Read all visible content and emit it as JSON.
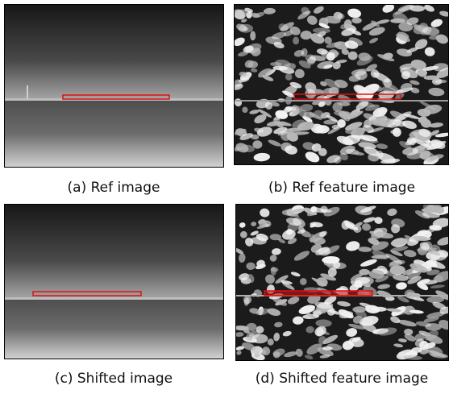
{
  "panels": [
    {
      "caption": "(a) Ref image"
    },
    {
      "caption": "(b) Ref feature image"
    },
    {
      "caption": "(c) Shifted image"
    },
    {
      "caption": "(d) Shifted feature image"
    }
  ]
}
